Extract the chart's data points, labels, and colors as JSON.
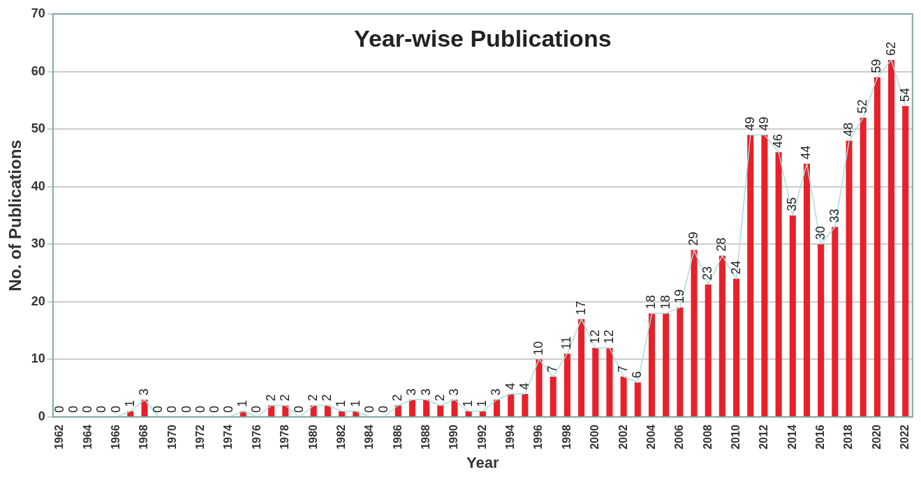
{
  "chart_data": {
    "type": "bar",
    "title": "Year-wise Publications",
    "xlabel": "Year",
    "ylabel": "No. of Publications",
    "categories": [
      "1962",
      null,
      "1964",
      null,
      "1966",
      null,
      "1968",
      null,
      "1970",
      null,
      "1972",
      null,
      "1974",
      null,
      "1976",
      null,
      "1978",
      null,
      "1980",
      null,
      "1982",
      null,
      "1984",
      null,
      "1986",
      null,
      "1988",
      null,
      "1990",
      null,
      "1992",
      null,
      "1994",
      null,
      "1996",
      null,
      "1998",
      null,
      "2000",
      null,
      "2002",
      null,
      "2004",
      null,
      "2006",
      null,
      "2008",
      null,
      "2010",
      null,
      "2012",
      null,
      "2014",
      null,
      "2016",
      null,
      "2018",
      null,
      "2020",
      null,
      "2022"
    ],
    "series": [
      {
        "color": "#e8202a",
        "values": [
          0,
          0,
          0,
          0,
          0,
          1,
          3,
          0,
          0,
          0,
          0,
          0,
          0,
          1,
          0,
          2,
          2,
          0,
          2,
          2,
          1,
          1,
          0,
          0,
          2,
          3,
          3,
          2,
          3,
          1,
          1,
          3,
          4,
          4,
          10,
          7,
          11,
          17,
          12,
          12,
          7,
          6,
          18,
          18,
          19,
          29,
          23,
          28,
          24,
          49,
          49,
          46,
          35,
          44,
          30,
          33,
          48,
          52,
          59,
          62,
          54
        ],
        "value_labels": [
          "0",
          "0",
          "0",
          "0",
          "0",
          "1",
          "3",
          "0",
          "0",
          "0",
          "0",
          "0",
          "0",
          "1",
          "0",
          "2",
          "2",
          "0",
          "2",
          "2",
          "1",
          "1",
          "0",
          "0",
          "2",
          "3",
          "3",
          "2",
          "3",
          "1",
          "1",
          "3",
          "4",
          "4",
          "10",
          "7",
          "11",
          "17",
          "12",
          "12",
          "7",
          "6",
          "18",
          "18",
          "19",
          "29",
          "23",
          "28",
          "24",
          "49",
          "49",
          "46",
          "35",
          "44",
          "30",
          "33",
          "48",
          "52",
          "59",
          "62",
          "54"
        ]
      },
      {
        "type": "line",
        "color": "#a8dede",
        "values": [
          null,
          null,
          null,
          null,
          0,
          1,
          3,
          0,
          null,
          null,
          null,
          null,
          0,
          1,
          0,
          2,
          2,
          0,
          2,
          2,
          1,
          1,
          0,
          0,
          2,
          3,
          3,
          2,
          3,
          1,
          1,
          3,
          4,
          4,
          10,
          7,
          11,
          17,
          12,
          12,
          7,
          6,
          18,
          18,
          19,
          29,
          23,
          28,
          24,
          49,
          49,
          46,
          35,
          44,
          30,
          33,
          48,
          52,
          59,
          62,
          54
        ]
      }
    ],
    "ylim": [
      0,
      70
    ],
    "yticks": [
      0,
      10,
      20,
      30,
      40,
      50,
      60,
      70
    ],
    "grid": "y",
    "legend": false
  }
}
